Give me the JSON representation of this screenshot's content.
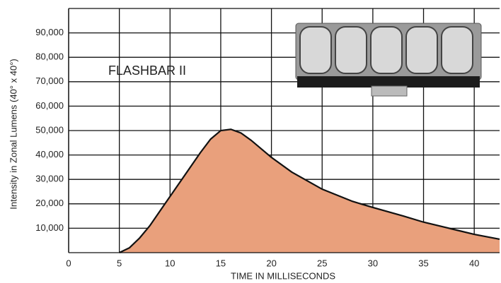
{
  "chart_data": {
    "type": "area",
    "annotation": "FLASHBAR II",
    "xlabel": "TIME IN MILLISECONDS",
    "ylabel": "Intensity in Zonal Lumens (40° x 40°)",
    "x": [
      5,
      6,
      7,
      8,
      9,
      10,
      11,
      12,
      13,
      14,
      15,
      16,
      17,
      18,
      19,
      20,
      22,
      25,
      28,
      30,
      33,
      35,
      38,
      40,
      42.5
    ],
    "values": [
      0,
      2000,
      6000,
      11000,
      17000,
      23000,
      29000,
      35000,
      41000,
      46500,
      50000,
      50500,
      49000,
      46000,
      42500,
      39000,
      33000,
      26000,
      21000,
      18500,
      15000,
      12500,
      9500,
      7500,
      5500
    ],
    "color": "#e9a07c",
    "xlim": [
      0,
      42.5
    ],
    "ylim": [
      0,
      100000
    ],
    "xticks": [
      0,
      5,
      10,
      15,
      20,
      25,
      30,
      35,
      40
    ],
    "yticks": [
      {
        "value": 10000,
        "label": "10,000"
      },
      {
        "value": 20000,
        "label": "20,000"
      },
      {
        "value": 30000,
        "label": "30,000"
      },
      {
        "value": 40000,
        "label": "40,000"
      },
      {
        "value": 50000,
        "label": "50,000"
      },
      {
        "value": 60000,
        "label": "60,000"
      },
      {
        "value": 70000,
        "label": "70,000"
      },
      {
        "value": 80000,
        "label": "80,000"
      },
      {
        "value": 90000,
        "label": "90,000"
      }
    ],
    "grid": true
  }
}
